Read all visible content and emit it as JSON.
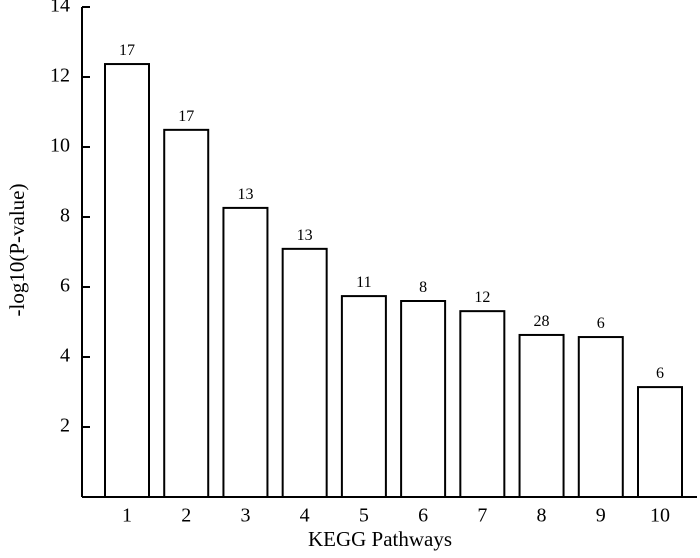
{
  "chart_data": {
    "type": "bar",
    "categories": [
      "1",
      "2",
      "3",
      "4",
      "5",
      "6",
      "7",
      "8",
      "9",
      "10"
    ],
    "values": [
      12.37,
      10.49,
      8.26,
      7.09,
      5.74,
      5.6,
      5.31,
      4.63,
      4.57,
      3.14
    ],
    "annotations": [
      "17",
      "17",
      "13",
      "13",
      "11",
      "8",
      "12",
      "28",
      "6",
      "6"
    ],
    "color": "#ffffff",
    "xlabel": "KEGG Pathways",
    "ylabel": "-log10(P-value)",
    "ylim": [
      0,
      14
    ],
    "yticks": [
      2,
      4,
      6,
      8,
      10,
      12,
      14
    ],
    "grid": false
  }
}
